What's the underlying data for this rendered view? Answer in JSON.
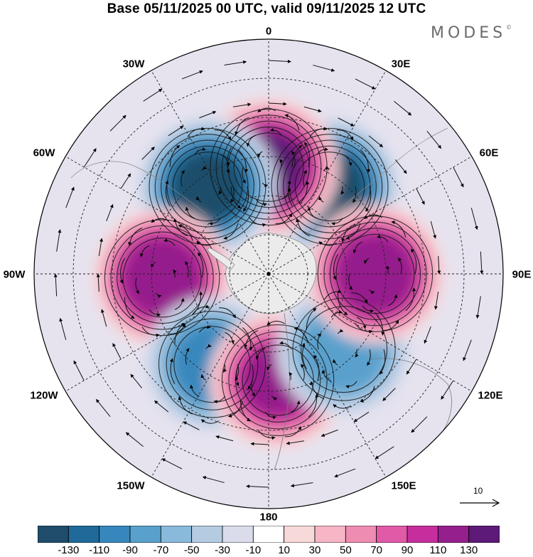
{
  "title": "Base 05/11/2025 00 UTC, valid 09/11/2025 12 UTC",
  "brand": "MODES",
  "brand_mark": "©",
  "longitude_labels": [
    {
      "id": "lon-0",
      "text": "0"
    },
    {
      "id": "lon-30e",
      "text": "30E"
    },
    {
      "id": "lon-60e",
      "text": "60E"
    },
    {
      "id": "lon-90e",
      "text": "90E"
    },
    {
      "id": "lon-120e",
      "text": "120E"
    },
    {
      "id": "lon-150e",
      "text": "150E"
    },
    {
      "id": "lon-180",
      "text": "180"
    },
    {
      "id": "lon-150w",
      "text": "150W"
    },
    {
      "id": "lon-120w",
      "text": "120W"
    },
    {
      "id": "lon-90w",
      "text": "90W"
    },
    {
      "id": "lon-60w",
      "text": "60W"
    },
    {
      "id": "lon-30w",
      "text": "30W"
    }
  ],
  "reference_vector": {
    "value": "10",
    "icon": "arrow-right-icon"
  },
  "colorbar": {
    "colors": [
      "#1f4d6b",
      "#1f6a99",
      "#3787bd",
      "#5aa0cc",
      "#89b9db",
      "#b4cbe2",
      "#dadcec",
      "#ffffff",
      "#f8d9d9",
      "#f6b6c6",
      "#ef8cb2",
      "#e05aa8",
      "#c52e9c",
      "#951f8c",
      "#5e1a78"
    ],
    "labels": [
      "-130",
      "-110",
      "-90",
      "-70",
      "-50",
      "-30",
      "-10",
      "10",
      "30",
      "50",
      "70",
      "90",
      "110",
      "130"
    ]
  },
  "anomaly_centers": [
    {
      "sign": "negative",
      "lon": 35,
      "amplitude": 140
    },
    {
      "sign": "positive",
      "lon": 0,
      "amplitude": 140
    },
    {
      "sign": "negative",
      "lon": -35,
      "amplitude": 140
    },
    {
      "sign": "positive",
      "lon": -92,
      "amplitude": 135
    },
    {
      "sign": "negative",
      "lon": -148,
      "amplitude": 105
    },
    {
      "sign": "positive",
      "lon": 175,
      "amplitude": 120
    },
    {
      "sign": "negative",
      "lon": 135,
      "amplitude": 95
    },
    {
      "sign": "positive",
      "lon": 90,
      "amplitude": 135
    }
  ]
}
